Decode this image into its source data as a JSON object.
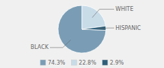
{
  "chart_data": {
    "type": "pie",
    "categories": [
      "BLACK",
      "WHITE",
      "HISPANIC"
    ],
    "values": [
      74.3,
      22.8,
      2.9
    ],
    "value_labels": [
      "74.3%",
      "22.8%",
      "2.9%"
    ],
    "colors": [
      "#7a9db5",
      "#c8dce8",
      "#2e5f7a"
    ],
    "legend": "bottom"
  }
}
